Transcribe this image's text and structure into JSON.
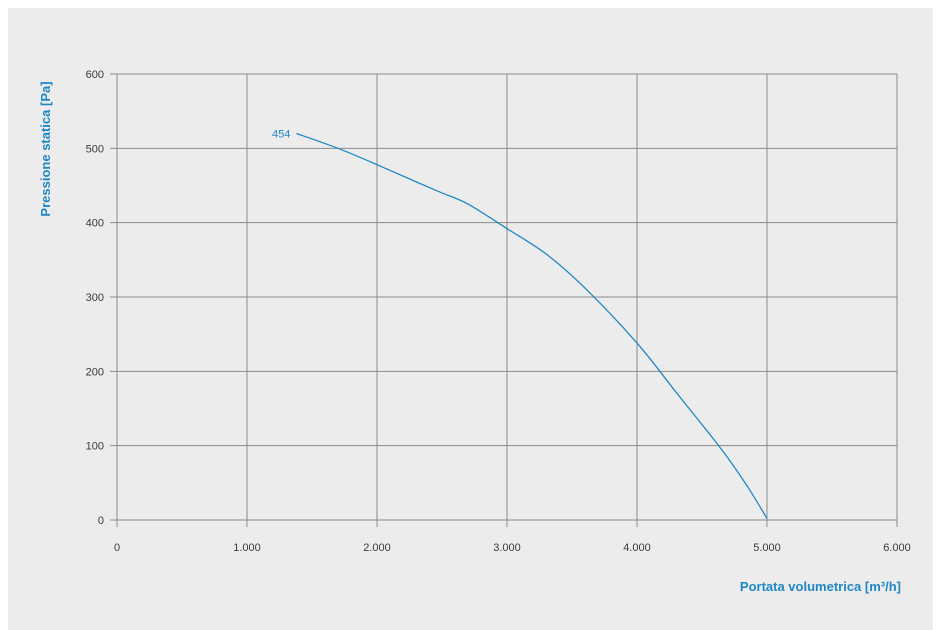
{
  "chart_data": {
    "type": "line",
    "xlabel": "Portata volumetrica [m³/h]",
    "ylabel": "Pressione statica [Pa]",
    "xlim": [
      0,
      6000
    ],
    "ylim": [
      0,
      600
    ],
    "x_ticks": [
      0,
      1000,
      2000,
      3000,
      4000,
      5000,
      6000
    ],
    "x_tick_labels": [
      "0",
      "1.000",
      "2.000",
      "3.000",
      "4.000",
      "5.000",
      "6.000"
    ],
    "y_ticks": [
      0,
      100,
      200,
      300,
      400,
      500,
      600
    ],
    "y_tick_labels": [
      "0",
      "100",
      "200",
      "300",
      "400",
      "500",
      "600"
    ],
    "grid": true,
    "series": [
      {
        "name": "454",
        "color": "#1f87c6",
        "x": [
          1380,
          1700,
          2000,
          2300,
          2500,
          2700,
          3000,
          3300,
          3600,
          4000,
          4300,
          4650,
          4850,
          5000
        ],
        "y": [
          520,
          500,
          478,
          455,
          440,
          425,
          392,
          358,
          312,
          238,
          172,
          95,
          45,
          2
        ]
      }
    ]
  },
  "colors": {
    "panel_background": "#ececec",
    "grid": "#8a8a8a",
    "accent": "#1f87c6",
    "tick_text": "#3a3a3a"
  }
}
